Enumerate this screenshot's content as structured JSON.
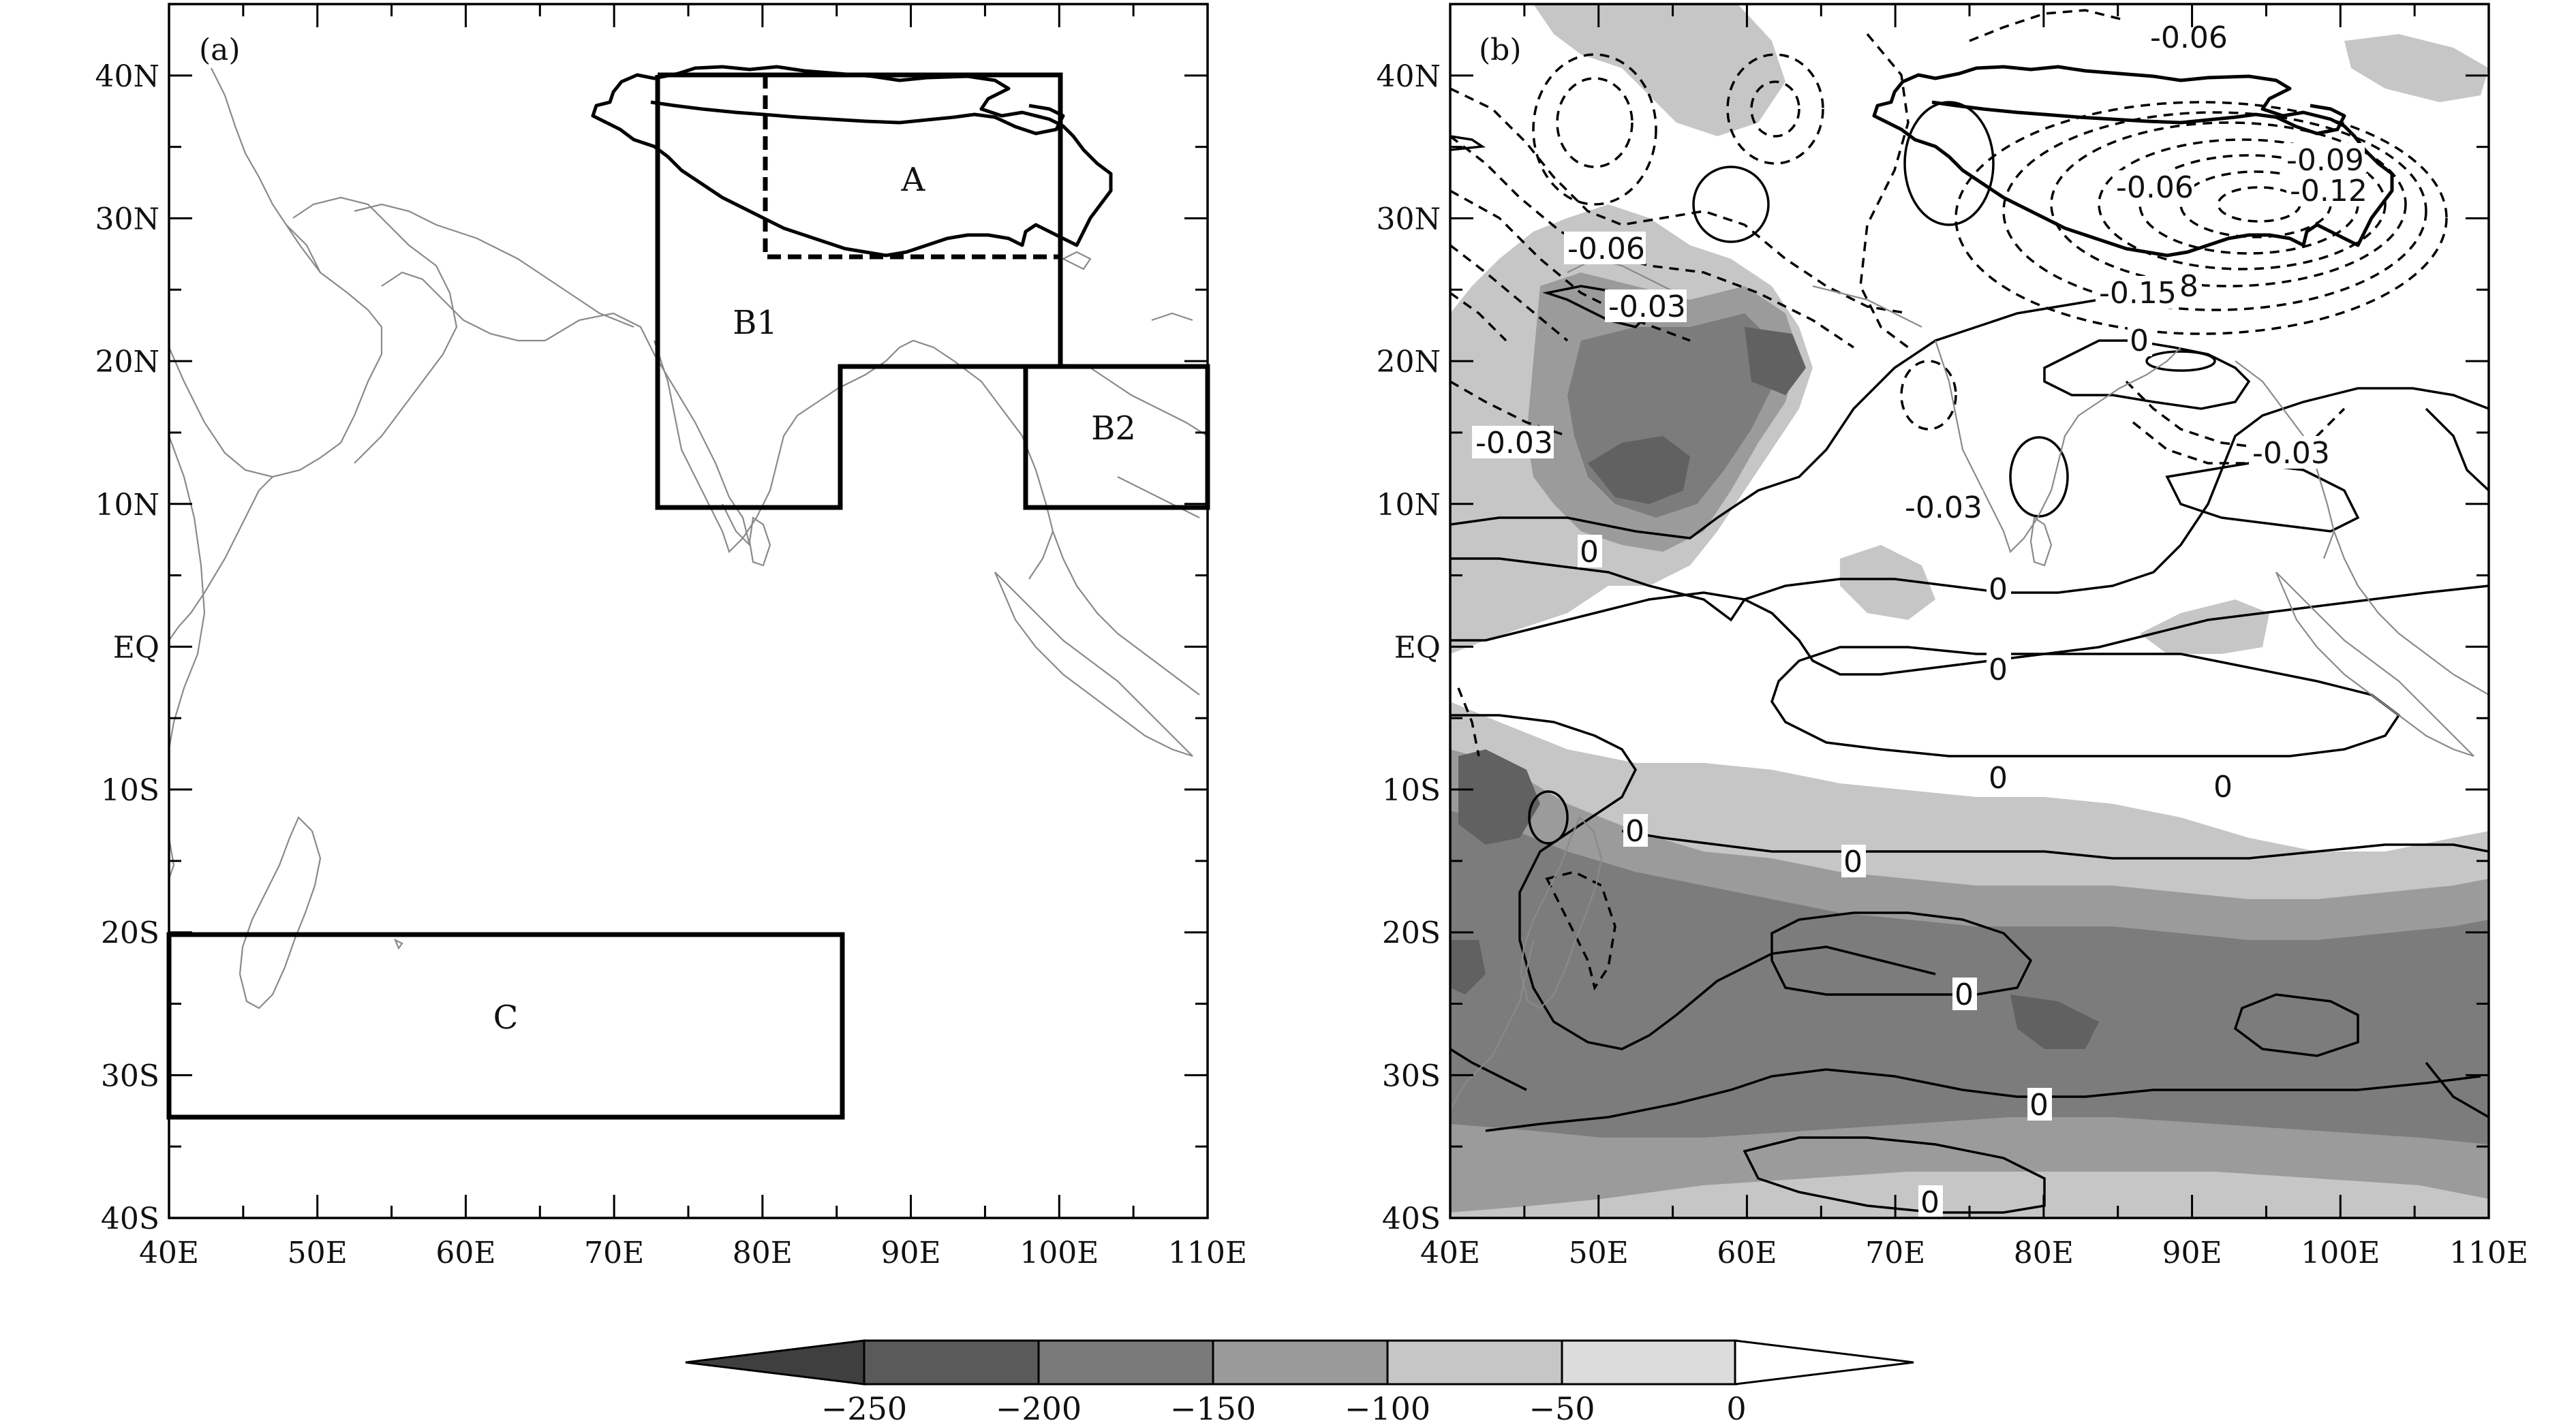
{
  "panels": [
    {
      "tag": "(a)",
      "regions": [
        {
          "label": "A",
          "lon": [
            80,
            100
          ],
          "lat": [
            27.5,
            40
          ]
        },
        {
          "label": "B1"
        },
        {
          "label": "B2",
          "lon": [
            97.5,
            110
          ],
          "lat": [
            10,
            20
          ]
        },
        {
          "label": "C",
          "lon": [
            40,
            85
          ],
          "lat": [
            -32.5,
            -20
          ]
        }
      ]
    },
    {
      "tag": "(b)",
      "contour_labels": [
        "-0.06",
        "-0.09",
        "-0.06",
        "-0.12",
        "-0.15",
        "8",
        "-0.06",
        "-0.03",
        "0",
        "-0.03",
        "-0.03",
        "-0.03",
        "0",
        "0",
        "0",
        "0",
        "0",
        "0",
        "0",
        "0",
        "0",
        "0",
        "0"
      ]
    }
  ],
  "map_extent": {
    "lon": [
      40,
      110
    ],
    "lat": [
      -40,
      45
    ]
  },
  "lon_ticks": [
    "40E",
    "50E",
    "60E",
    "70E",
    "80E",
    "90E",
    "100E",
    "110E"
  ],
  "lat_ticks": [
    "40N",
    "30N",
    "20N",
    "10N",
    "EQ",
    "10S",
    "20S",
    "30S",
    "40S"
  ],
  "colorbar": {
    "labels": [
      "−250",
      "−200",
      "−150",
      "−100",
      "−50",
      "0"
    ],
    "levels": [
      -250,
      -200,
      -150,
      -100,
      -50,
      0
    ],
    "colors": [
      "#3f3f3f",
      "#616161",
      "#7c7c7c",
      "#9b9b9b",
      "#c6c6c6",
      "#ffffff"
    ]
  }
}
